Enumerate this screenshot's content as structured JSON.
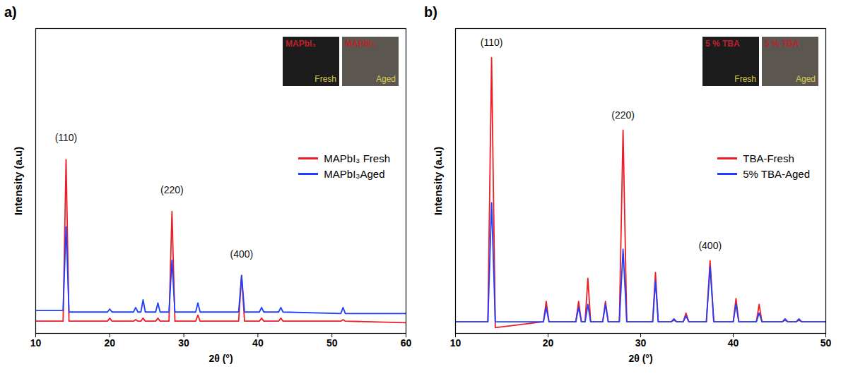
{
  "chart_data": [
    {
      "type": "line",
      "panel_label": "a)",
      "x_label": "2θ (°)",
      "y_label": "Intensity (a.u)",
      "xlim": [
        10,
        60
      ],
      "xticks": [
        10,
        20,
        30,
        40,
        50,
        60
      ],
      "ylim": [
        0,
        100
      ],
      "yticks": [],
      "tick_labels": "x",
      "legend": "right",
      "x": [
        10,
        13.7,
        14.1,
        14.5,
        19.7,
        20.0,
        20.3,
        23.2,
        23.5,
        23.8,
        24.2,
        24.5,
        24.8,
        26.2,
        26.5,
        26.8,
        28.0,
        28.4,
        28.8,
        31.6,
        31.9,
        32.2,
        37.4,
        37.8,
        38.2,
        40.2,
        40.5,
        40.8,
        42.8,
        43.1,
        43.4,
        51.2,
        51.5,
        51.8,
        60
      ],
      "series": [
        {
          "name": "MAPbI₃ Fresh",
          "color": "#ee1c25",
          "values": [
            4,
            4,
            57,
            4,
            4,
            5,
            4,
            4,
            4.5,
            4,
            4,
            5,
            4,
            4,
            5,
            4,
            4,
            40,
            4,
            4,
            6,
            4,
            4,
            19,
            4,
            4,
            5,
            4,
            4,
            5,
            4,
            4,
            4.5,
            4,
            3.5
          ]
        },
        {
          "name": "MAPbI₃Aged",
          "color": "#1f3fff",
          "values": [
            7.5,
            7.5,
            35,
            7,
            7,
            8,
            7,
            7,
            8.5,
            7,
            7,
            11,
            7,
            7,
            10,
            7,
            7,
            24,
            7,
            7,
            10,
            7,
            7,
            19,
            7,
            7,
            8.5,
            7,
            7,
            8.5,
            7,
            6.5,
            8.5,
            6.5,
            6.5
          ]
        }
      ],
      "annotations": [
        {
          "text": "(110)",
          "x": 14.1,
          "y": 63
        },
        {
          "text": "(220)",
          "x": 28.4,
          "y": 46
        },
        {
          "text": "(400)",
          "x": 37.8,
          "y": 25
        }
      ],
      "insets": [
        {
          "label": "MAPbI₃",
          "state": "Fresh"
        },
        {
          "label": "MAPbI₃",
          "state": "Aged"
        }
      ]
    },
    {
      "type": "line",
      "panel_label": "b)",
      "x_label": "2θ (°)",
      "y_label": "Intensity (a.u)",
      "xlim": [
        10,
        50
      ],
      "xticks": [
        10,
        20,
        30,
        40,
        50
      ],
      "ylim": [
        0,
        105
      ],
      "yticks": [],
      "tick_labels": "x",
      "legend": "right",
      "x": [
        10,
        13.5,
        13.9,
        14.3,
        19.5,
        19.8,
        20.1,
        23.0,
        23.3,
        23.6,
        24.0,
        24.3,
        24.6,
        25.9,
        26.2,
        26.5,
        27.7,
        28.1,
        28.5,
        31.3,
        31.6,
        31.9,
        33.3,
        33.6,
        33.9,
        34.6,
        34.9,
        35.2,
        37.1,
        37.5,
        37.9,
        40.0,
        40.3,
        40.6,
        42.5,
        42.8,
        43.1,
        45.3,
        45.6,
        45.9,
        46.8,
        47.1,
        47.4,
        50
      ],
      "series": [
        {
          "name": "TBA-Fresh",
          "color": "#ee1c25",
          "values": [
            4,
            4,
            95,
            2,
            4,
            11,
            4,
            4,
            11,
            4,
            4,
            19,
            4,
            4,
            11,
            4,
            4,
            70,
            4,
            4,
            21,
            4,
            4,
            4.5,
            4,
            4,
            7,
            4,
            4,
            25,
            4,
            4,
            12,
            4,
            4,
            10,
            4,
            4,
            4.5,
            4,
            4,
            4.5,
            4,
            4
          ]
        },
        {
          "name": "5% TBA-Aged",
          "color": "#1f3fff",
          "values": [
            4,
            4,
            45,
            4,
            4,
            9,
            4,
            4,
            9,
            4,
            4,
            10,
            4,
            4,
            10,
            4,
            4,
            29,
            4,
            4,
            18,
            4,
            4,
            5,
            4,
            4,
            6,
            4,
            4,
            23,
            4,
            4,
            10,
            4,
            4,
            7,
            4,
            4,
            5,
            4,
            4,
            5,
            4,
            4
          ]
        }
      ],
      "annotations": [
        {
          "text": "(110)",
          "x": 13.9,
          "y": 99
        },
        {
          "text": "(220)",
          "x": 28.1,
          "y": 74
        },
        {
          "text": "(400)",
          "x": 37.5,
          "y": 29
        }
      ],
      "insets": [
        {
          "label": "5 % TBA",
          "state": "Fresh"
        },
        {
          "label": "5 % TBA",
          "state": "Aged"
        }
      ]
    }
  ]
}
